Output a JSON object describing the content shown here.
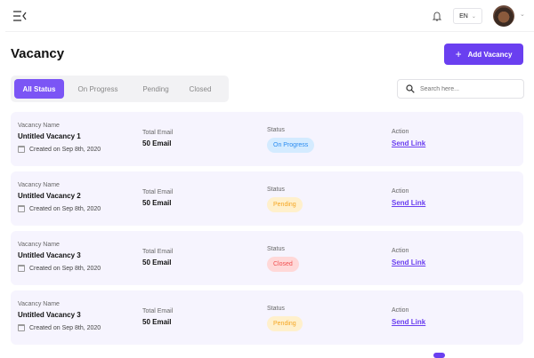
{
  "header": {
    "language": "EN"
  },
  "page_title": "Vacancy",
  "add_button": "Add Vacancy",
  "tabs": [
    "All Status",
    "On Progress",
    "Pending",
    "Closed"
  ],
  "search": {
    "placeholder": "Search here..."
  },
  "labels": {
    "name": "Vacancy Name",
    "email": "Total Email",
    "status": "Status",
    "action": "Action"
  },
  "status_colors": {
    "On Progress": {
      "bg": "#d4ebff",
      "fg": "#2a8cf0"
    },
    "Pending": {
      "bg": "#fff0cc",
      "fg": "#f5a623"
    },
    "Closed": {
      "bg": "#ffd8d8",
      "fg": "#f05050"
    }
  },
  "vacancies": [
    {
      "name": "Untitled Vacancy 1",
      "created": "Created on Sep 8th, 2020",
      "email": "50 Email",
      "status": "On Progress",
      "action": "Send Link"
    },
    {
      "name": "Untitled Vacancy 2",
      "created": "Created on Sep 8th, 2020",
      "email": "50 Email",
      "status": "Pending",
      "action": "Send Link"
    },
    {
      "name": "Untitled Vacancy 3",
      "created": "Created on Sep 8th, 2020",
      "email": "50 Email",
      "status": "Closed",
      "action": "Send Link"
    },
    {
      "name": "Untitled Vacancy 3",
      "created": "Created on Sep 8th, 2020",
      "email": "50 Email",
      "status": "Pending",
      "action": "Send Link"
    }
  ]
}
